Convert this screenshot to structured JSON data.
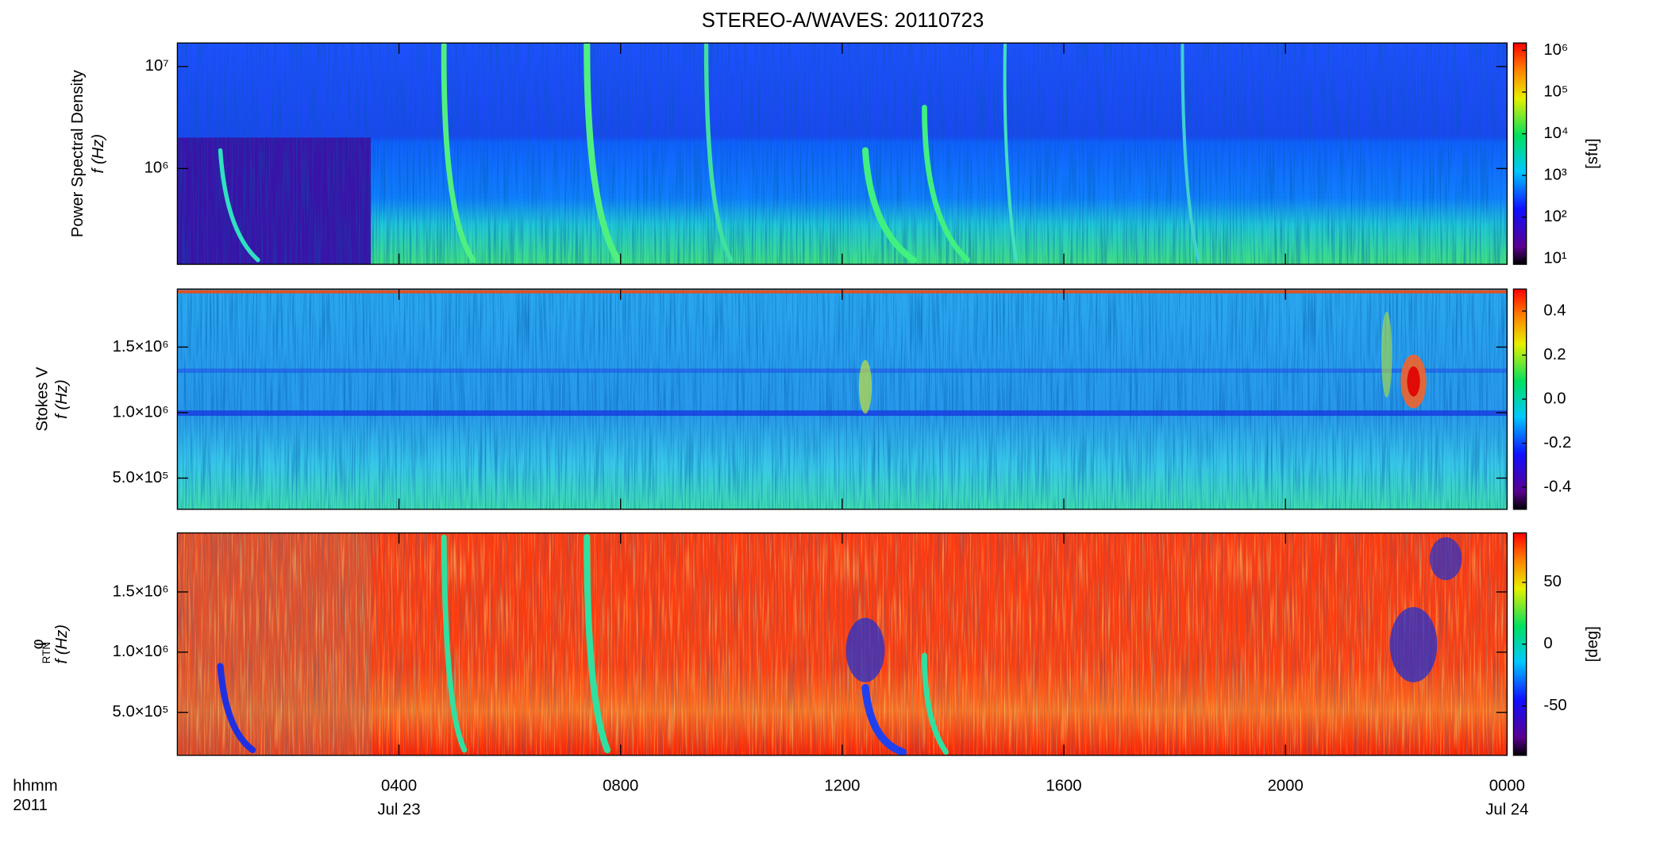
{
  "title": "STEREO-A/WAVES: 20110723",
  "x_axis": {
    "xlim": [
      0,
      24
    ],
    "xticks": [
      {
        "value": 4,
        "label": "0400"
      },
      {
        "value": 8,
        "label": "0800"
      },
      {
        "value": 12,
        "label": "1200"
      },
      {
        "value": 16,
        "label": "1600"
      },
      {
        "value": 20,
        "label": "2000"
      },
      {
        "value": 24,
        "label": "0000"
      }
    ],
    "date_labels": [
      {
        "value": 4,
        "label": "Jul 23"
      },
      {
        "value": 24,
        "label": "Jul 24"
      }
    ],
    "format_label": "hhmm",
    "year_label": "2011"
  },
  "chart_data": [
    {
      "type": "spectrogram",
      "ylabel": [
        "Power Spectral Density",
        "f (Hz)"
      ],
      "ylog": true,
      "ylim": [
        115000,
        17000000
      ],
      "yticks": [
        {
          "value": 1000000,
          "label": "10⁶"
        },
        {
          "value": 10000000,
          "label": "10⁷"
        }
      ],
      "colorbar": {
        "log": true,
        "clim": [
          7.4,
          1500000
        ],
        "ticks": [
          {
            "value": 10,
            "label": "10¹"
          },
          {
            "value": 100,
            "label": "10²"
          },
          {
            "value": 1000,
            "label": "10³"
          },
          {
            "value": 10000,
            "label": "10⁴"
          },
          {
            "value": 100000,
            "label": "10⁵"
          },
          {
            "value": 1000000,
            "label": "10⁶"
          }
        ],
        "label": "[sfu]"
      }
    },
    {
      "type": "spectrogram",
      "ylabel": [
        "Stokes V",
        "f (Hz)"
      ],
      "ylog": false,
      "ylim": [
        262000,
        1943000
      ],
      "yticks": [
        {
          "value": 500000,
          "label": "5.0×10⁵"
        },
        {
          "value": 1000000,
          "label": "1.0×10⁶"
        },
        {
          "value": 1500000,
          "label": "1.5×10⁶"
        }
      ],
      "colorbar": {
        "log": false,
        "clim": [
          -0.5,
          0.5
        ],
        "ticks": [
          -0.4,
          -0.2,
          {
            "value": 0,
            "label": "0.0"
          },
          0.2,
          0.4
        ]
      }
    },
    {
      "type": "spectrogram",
      "ylabel": [
        "φ",
        "RTN",
        "f (Hz)"
      ],
      "ylog": false,
      "ylim": [
        143000,
        1990000
      ],
      "yticks": [
        {
          "value": 500000,
          "label": "5.0×10⁵"
        },
        {
          "value": 1000000,
          "label": "1.0×10⁶"
        },
        {
          "value": 1500000,
          "label": "1.5×10⁶"
        }
      ],
      "colorbar": {
        "log": false,
        "clim": [
          -90,
          90
        ],
        "ticks": [
          -50,
          0,
          50
        ],
        "label": "[deg]"
      }
    }
  ]
}
